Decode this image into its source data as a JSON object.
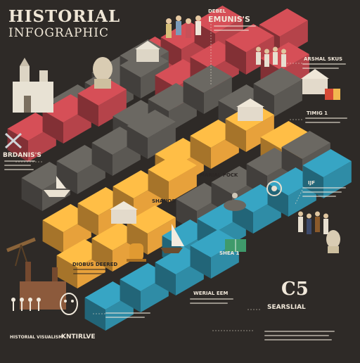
{
  "title": {
    "line1": "HISTORIAL",
    "line2": "INFOGRAPHIC"
  },
  "labels": {
    "top_right_heading_1": "DEBEL",
    "top_right_heading_2": "EMUNIS'S",
    "arshal": "ARSHAL SKUS",
    "brdaniss": "BRDANIS'S",
    "timing": "TIMIG 1",
    "ijf": "IJF",
    "marial_pock": "MARIAL POCK",
    "shanos": "SHANOS",
    "diobus": "DIOBUS DEERED",
    "shea": "SHEA 1",
    "werial": "WERIAL EEM",
    "searslial": "SEARSLIAL",
    "historial_visual": "HISTORIAL VISUALISM",
    "kntirlve": "KNTIRLVE",
    "cyan_number": "C5"
  },
  "palette": {
    "bg": "#2e2a27",
    "red": "#b5434a",
    "red_light": "#c85058",
    "grey": "#5b5853",
    "grey_light": "#7b776f",
    "orange": "#e7a13b",
    "orange_light": "#f2b84f",
    "teal": "#2f8ca6",
    "teal_light": "#3ca3be",
    "cream": "#efe6d6"
  },
  "icons": [
    "castle-icon",
    "bust-icon",
    "temple-icon",
    "kings-icon",
    "soldiers-icon",
    "crossed-swords-icon",
    "ship-icon",
    "bell-icon",
    "sailboat-icon",
    "telescope-icon",
    "factory-icon",
    "dancers-icon",
    "mask-icon",
    "book-icon",
    "globe-icon",
    "flag-icon",
    "horseman-icon"
  ]
}
